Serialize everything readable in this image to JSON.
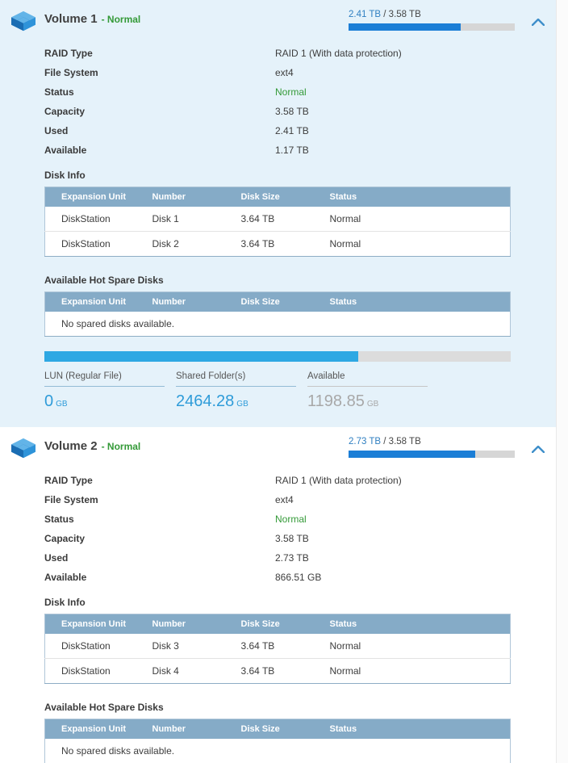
{
  "colors": {
    "section_highlight_bg": "#e5f2fa",
    "status_green": "#349a38",
    "link_blue": "#2f7fc1",
    "mini_bar_fill": "#1b7ed6",
    "big_bar_fill": "#2ea8e3",
    "table_header_bg": "#85abc7",
    "stat_value_blue": "#2f9cd9",
    "stat_value_gray": "#a8a8a8"
  },
  "volumes": [
    {
      "name": "Volume 1",
      "status_label": "- Normal",
      "usage": {
        "used_label": "2.41 TB",
        "total_label": "/ 3.58 TB",
        "used_percent": 67.3
      },
      "properties": [
        {
          "label": "RAID Type",
          "value": "RAID 1 (With data protection)"
        },
        {
          "label": "File System",
          "value": "ext4"
        },
        {
          "label": "Status",
          "value": "Normal"
        },
        {
          "label": "Capacity",
          "value": "3.58 TB"
        },
        {
          "label": "Used",
          "value": "2.41 TB"
        },
        {
          "label": "Available",
          "value": "1.17 TB"
        }
      ],
      "disk_info": {
        "title": "Disk Info",
        "headers": [
          "Expansion Unit",
          "Number",
          "Disk Size",
          "Status"
        ],
        "rows": [
          [
            "DiskStation",
            "Disk 1",
            "3.64 TB",
            "Normal"
          ],
          [
            "DiskStation",
            "Disk 2",
            "3.64 TB",
            "Normal"
          ]
        ]
      },
      "hot_spare": {
        "title": "Available Hot Spare Disks",
        "headers": [
          "Expansion Unit",
          "Number",
          "Disk Size",
          "Status"
        ],
        "empty_text": "No spared disks available."
      },
      "allocation": {
        "used_percent": 67.3,
        "stats": [
          {
            "label": "LUN (Regular File)",
            "value": "0",
            "unit": "GB"
          },
          {
            "label": "Shared Folder(s)",
            "value": "2464.28",
            "unit": "GB"
          },
          {
            "label": "Available",
            "value": "1198.85",
            "unit": "GB"
          }
        ]
      }
    },
    {
      "name": "Volume 2",
      "status_label": "- Normal",
      "usage": {
        "used_label": "2.73 TB",
        "total_label": "/ 3.58 TB",
        "used_percent": 76.3
      },
      "properties": [
        {
          "label": "RAID Type",
          "value": "RAID 1 (With data protection)"
        },
        {
          "label": "File System",
          "value": "ext4"
        },
        {
          "label": "Status",
          "value": "Normal"
        },
        {
          "label": "Capacity",
          "value": "3.58 TB"
        },
        {
          "label": "Used",
          "value": "2.73 TB"
        },
        {
          "label": "Available",
          "value": "866.51 GB"
        }
      ],
      "disk_info": {
        "title": "Disk Info",
        "headers": [
          "Expansion Unit",
          "Number",
          "Disk Size",
          "Status"
        ],
        "rows": [
          [
            "DiskStation",
            "Disk 3",
            "3.64 TB",
            "Normal"
          ],
          [
            "DiskStation",
            "Disk 4",
            "3.64 TB",
            "Normal"
          ]
        ]
      },
      "hot_spare": {
        "title": "Available Hot Spare Disks",
        "headers": [
          "Expansion Unit",
          "Number",
          "Disk Size",
          "Status"
        ],
        "empty_text": "No spared disks available."
      }
    }
  ]
}
